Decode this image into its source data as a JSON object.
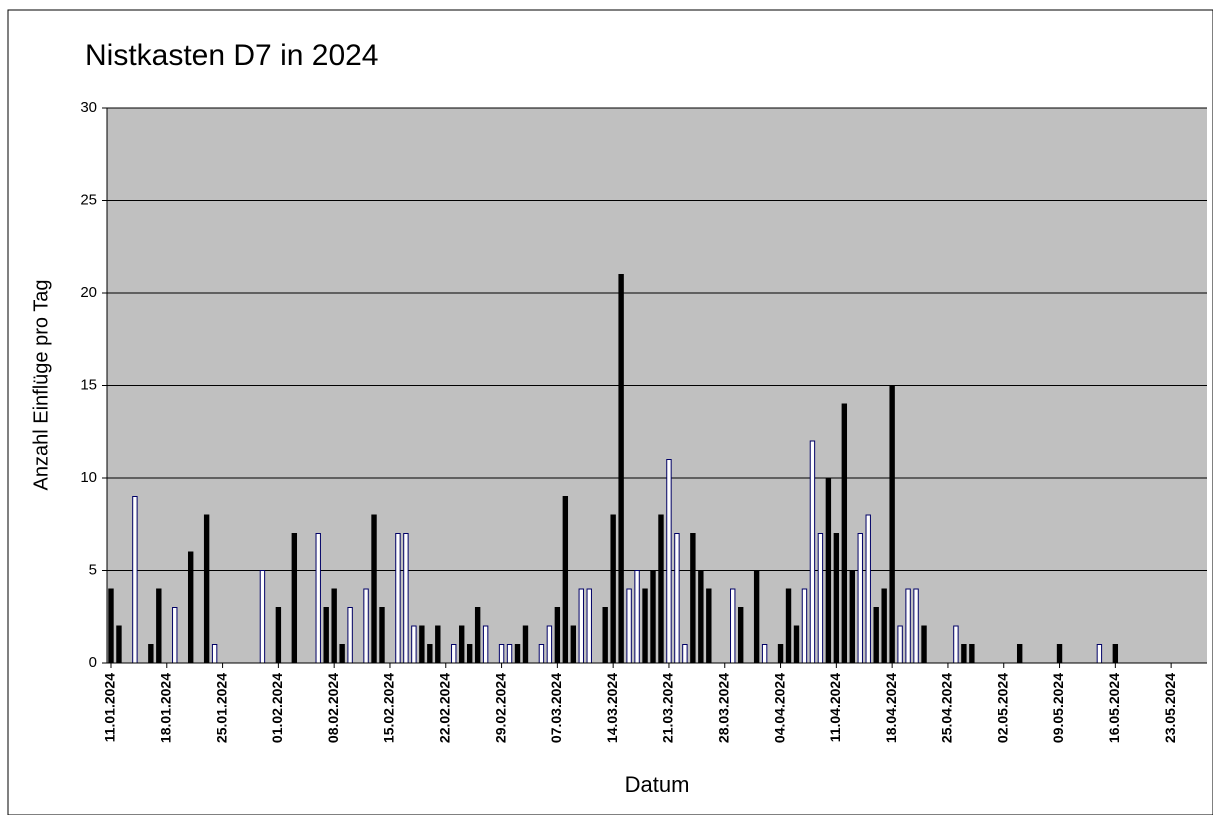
{
  "chart_data": {
    "type": "bar",
    "title": "Nistkasten  D7 in  2024",
    "xlabel": "Datum",
    "ylabel": "Anzahl Einflüge pro Tag",
    "categories": [
      "11.01.2024",
      null,
      null,
      null,
      null,
      null,
      null,
      "18.01.2024",
      null,
      null,
      null,
      null,
      null,
      null,
      "25.01.2024",
      null,
      null,
      null,
      null,
      null,
      null,
      "01.02.2024",
      null,
      null,
      null,
      null,
      null,
      null,
      "08.02.2024",
      null,
      null,
      null,
      null,
      null,
      null,
      "15.02.2024",
      null,
      null,
      null,
      null,
      null,
      null,
      "22.02.2024",
      null,
      null,
      null,
      null,
      null,
      null,
      "29.02.2024",
      null,
      null,
      null,
      null,
      null,
      null,
      "07.03.2024",
      null,
      null,
      null,
      null,
      null,
      null,
      "14.03.2024",
      null,
      null,
      null,
      null,
      null,
      null,
      "21.03.2024",
      null,
      null,
      null,
      null,
      null,
      null,
      "28.03.2024",
      null,
      null,
      null,
      null,
      null,
      null,
      "04.04.2024",
      null,
      null,
      null,
      null,
      null,
      null,
      "11.04.2024",
      null,
      null,
      null,
      null,
      null,
      null,
      "18.04.2024",
      null,
      null,
      null,
      null,
      null,
      null,
      "25.04.2024",
      null,
      null,
      null,
      null,
      null,
      null,
      "02.05.2024",
      null,
      null,
      null,
      null,
      null,
      null,
      "09.05.2024",
      null,
      null,
      null,
      null,
      null,
      null,
      "16.05.2024",
      null,
      null,
      null,
      null,
      null,
      null,
      "23.05.2024",
      null,
      null,
      null,
      null
    ],
    "values": [
      4,
      2,
      0,
      9,
      0,
      1,
      4,
      0,
      3,
      0,
      6,
      0,
      8,
      1,
      0,
      0,
      0,
      0,
      0,
      5,
      0,
      3,
      0,
      7,
      0,
      0,
      7,
      3,
      4,
      1,
      3,
      0,
      4,
      8,
      3,
      0,
      7,
      7,
      2,
      2,
      1,
      2,
      0,
      1,
      2,
      1,
      3,
      2,
      0,
      1,
      1,
      1,
      2,
      0,
      1,
      2,
      3,
      9,
      2,
      4,
      4,
      0,
      3,
      8,
      21,
      4,
      5,
      4,
      5,
      8,
      11,
      7,
      1,
      7,
      5,
      4,
      0,
      0,
      4,
      3,
      0,
      5,
      1,
      0,
      1,
      4,
      2,
      4,
      12,
      7,
      10,
      7,
      14,
      5,
      7,
      8,
      3,
      4,
      15,
      2,
      4,
      4,
      2,
      0,
      0,
      0,
      2,
      1,
      1,
      0,
      0,
      0,
      0,
      0,
      1,
      0,
      0,
      0,
      0,
      1,
      0,
      0,
      0,
      0,
      1,
      0,
      1,
      0,
      0,
      0,
      0,
      0,
      0,
      0,
      0,
      0,
      0,
      0
    ],
    "colors": [
      "#000",
      "#000",
      "#000",
      "#fff",
      "#000",
      "#000",
      "#000",
      "#000",
      "#fff",
      "#000",
      "#000",
      "#000",
      "#000",
      "#fff",
      "#000",
      "#000",
      "#000",
      "#000",
      "#000",
      "#fff",
      "#000",
      "#000",
      "#000",
      "#000",
      "#000",
      "#000",
      "#fff",
      "#000",
      "#000",
      "#000",
      "#fff",
      "#000",
      "#fff",
      "#000",
      "#000",
      "#000",
      "#fff",
      "#fff",
      "#fff",
      "#000",
      "#000",
      "#000",
      "#000",
      "#fff",
      "#000",
      "#000",
      "#000",
      "#fff",
      "#000",
      "#fff",
      "#fff",
      "#000",
      "#000",
      "#000",
      "#fff",
      "#fff",
      "#000",
      "#000",
      "#000",
      "#fff",
      "#fff",
      "#000",
      "#000",
      "#000",
      "#000",
      "#fff",
      "#fff",
      "#000",
      "#000",
      "#000",
      "#fff",
      "#fff",
      "#fff",
      "#000",
      "#000",
      "#000",
      "#000",
      "#000",
      "#fff",
      "#000",
      "#000",
      "#000",
      "#fff",
      "#000",
      "#000",
      "#000",
      "#000",
      "#fff",
      "#fff",
      "#fff",
      "#000",
      "#000",
      "#000",
      "#000",
      "#fff",
      "#fff",
      "#000",
      "#000",
      "#000",
      "#fff",
      "#fff",
      "#fff",
      "#000",
      "#000",
      "#000",
      "#000",
      "#fff",
      "#000",
      "#000",
      "#000",
      "#000",
      "#000",
      "#000",
      "#000",
      "#000",
      "#000",
      "#000",
      "#000",
      "#000",
      "#000",
      "#000",
      "#000",
      "#000",
      "#000",
      "#fff",
      "#000",
      "#000",
      "#000",
      "#000",
      "#000",
      "#000",
      "#000",
      "#000",
      "#000",
      "#000",
      "#000",
      "#000",
      "#000"
    ],
    "ylim": [
      0,
      30
    ],
    "yticks": [
      0,
      5,
      10,
      15,
      20,
      25,
      30
    ],
    "grid": true
  }
}
